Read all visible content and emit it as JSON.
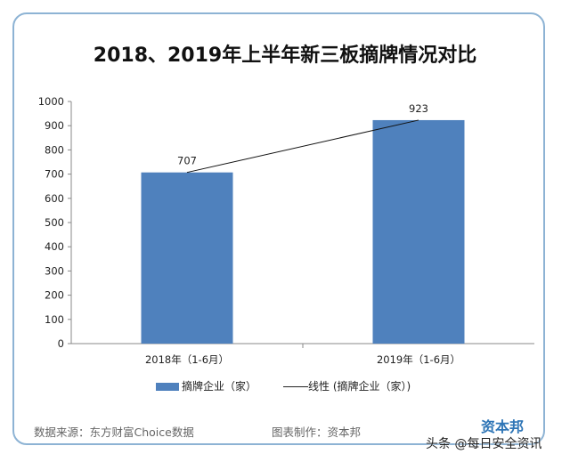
{
  "chart_data": {
    "type": "bar",
    "title": "2018、2019年上半年新三板摘牌情况对比",
    "categories": [
      "2018年（1-6月）",
      "2019年（1-6月）"
    ],
    "series": [
      {
        "name": "摘牌企业（家）",
        "values": [
          707,
          923
        ],
        "color": "#4f81bd"
      }
    ],
    "trendline": {
      "name": "线性 (摘牌企业（家）)",
      "type": "linear"
    },
    "data_labels": [
      "707",
      "923"
    ],
    "ylim": [
      0,
      1000
    ],
    "yticks": [
      "0",
      "100",
      "200",
      "300",
      "400",
      "500",
      "600",
      "700",
      "800",
      "900",
      "1000"
    ],
    "grid": false,
    "legend": "bottom"
  },
  "legend": {
    "bar": "摘牌企业（家）",
    "line": "线性 (摘牌企业（家）)"
  },
  "footer": {
    "source": "数据来源：东方财富Choice数据",
    "maker": "图表制作：资本邦"
  },
  "logo": "资本邦",
  "watermark": "头条 @每日安全资讯"
}
